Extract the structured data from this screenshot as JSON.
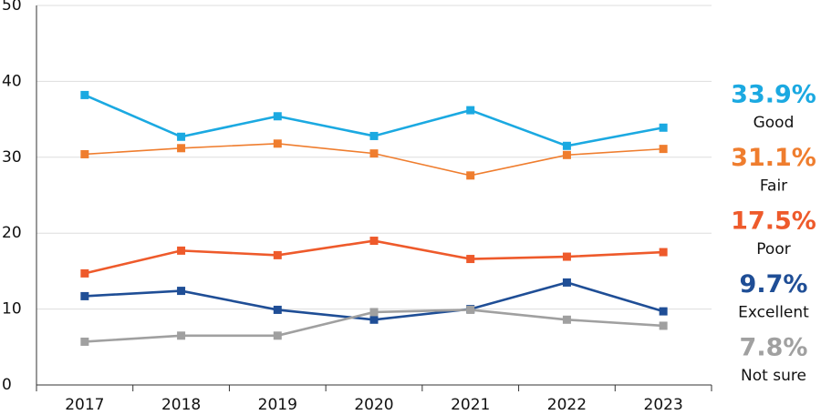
{
  "chart_data": {
    "type": "line",
    "categories": [
      "2017",
      "2018",
      "2019",
      "2020",
      "2021",
      "2022",
      "2023"
    ],
    "ylim": [
      0,
      50
    ],
    "yticks": [
      0,
      10,
      20,
      30,
      40,
      50
    ],
    "grid": true,
    "series": [
      {
        "name": "Good",
        "color": "#1ba9e1",
        "values": [
          38.2,
          32.7,
          35.4,
          32.8,
          36.2,
          31.5,
          33.9
        ],
        "value_labels": [
          null,
          null,
          null,
          null,
          null,
          null,
          "33.9%"
        ]
      },
      {
        "name": "Fair",
        "color": "#ef7d2e",
        "values": [
          30.4,
          31.2,
          31.8,
          30.5,
          27.6,
          30.3,
          31.1
        ],
        "value_labels": [
          null,
          null,
          null,
          null,
          null,
          null,
          "31.1%"
        ]
      },
      {
        "name": "Poor",
        "color": "#ee5a2b",
        "values": [
          14.7,
          17.7,
          17.1,
          19.0,
          16.6,
          16.9,
          17.5
        ],
        "value_labels": [
          null,
          null,
          null,
          null,
          null,
          null,
          "17.5%"
        ]
      },
      {
        "name": "Excellent",
        "color": "#1f4e96",
        "values": [
          11.7,
          12.4,
          9.9,
          8.6,
          10.0,
          13.5,
          9.7
        ],
        "value_labels": [
          null,
          null,
          null,
          null,
          null,
          null,
          "9.7%"
        ]
      },
      {
        "name": "Not sure",
        "color": "#a0a0a0",
        "values": [
          5.7,
          6.5,
          6.5,
          9.6,
          9.9,
          8.6,
          7.8
        ],
        "value_labels": [
          null,
          null,
          null,
          null,
          null,
          null,
          "7.8%"
        ]
      }
    ]
  }
}
